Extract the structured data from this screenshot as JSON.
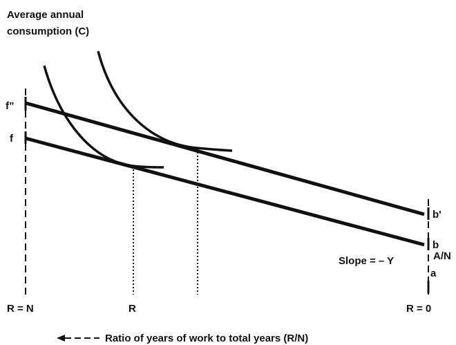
{
  "title_lines": [
    "Average annual",
    "consumption  (C)"
  ],
  "labels": {
    "f_double_prime": "f”",
    "f": "f",
    "b_prime": "b'",
    "b": "b",
    "slope": "Slope = – Y",
    "a_over_n": "A/N",
    "a": "a",
    "r_eq_n": "R = N",
    "r": "R",
    "r_eq_0": "R = 0"
  },
  "x_axis_label": "Ratio of years of work to total years (R/N)"
}
